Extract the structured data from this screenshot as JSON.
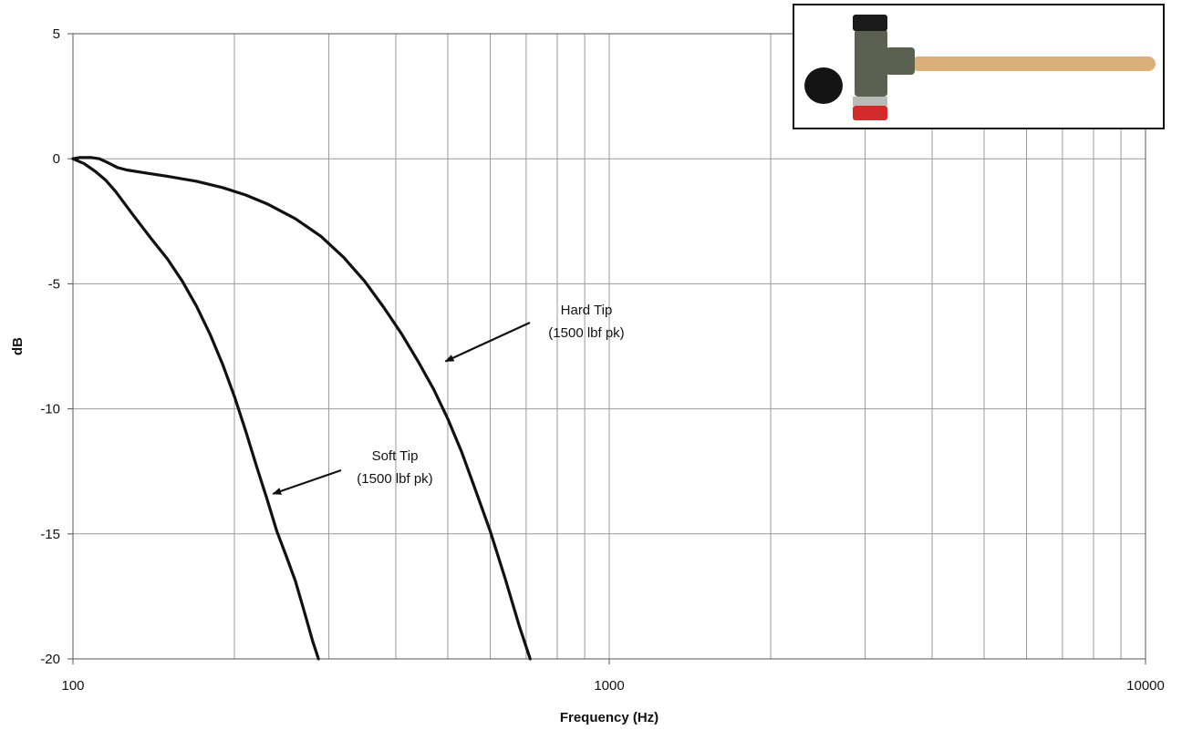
{
  "chart_data": {
    "type": "line",
    "title": "",
    "xlabel": "Frequency (Hz)",
    "ylabel": "dB",
    "xscale": "log",
    "xlim": [
      100,
      10000
    ],
    "ylim": [
      -20,
      5
    ],
    "x_ticks": [
      "100",
      "1000",
      "10000"
    ],
    "y_ticks": [
      "5",
      "0",
      "-5",
      "-10",
      "-15",
      "-20"
    ],
    "grid": true,
    "legend": "none",
    "series": [
      {
        "name": "Hard Tip",
        "color": "#111111",
        "x": [
          100,
          103,
          108,
          112,
          116,
          121,
          126,
          135,
          150,
          170,
          190,
          210,
          230,
          260,
          290,
          320,
          350,
          380,
          410,
          440,
          470,
          500,
          530,
          560,
          600,
          640,
          680,
          712
        ],
        "y": [
          0,
          0.05,
          0.05,
          0,
          -0.15,
          -0.35,
          -0.45,
          -0.55,
          -0.7,
          -0.9,
          -1.15,
          -1.45,
          -1.8,
          -2.4,
          -3.1,
          -3.95,
          -4.9,
          -5.95,
          -7.0,
          -8.1,
          -9.2,
          -10.4,
          -11.7,
          -13.1,
          -14.9,
          -16.8,
          -18.7,
          -20
        ]
      },
      {
        "name": "Soft Tip",
        "color": "#111111",
        "x": [
          100,
          105,
          110,
          115,
          120,
          130,
          140,
          150,
          160,
          170,
          180,
          190,
          200,
          210,
          220,
          230,
          240,
          250,
          260,
          270,
          280,
          287
        ],
        "y": [
          0,
          -0.2,
          -0.5,
          -0.85,
          -1.3,
          -2.3,
          -3.2,
          -4.0,
          -4.9,
          -5.9,
          -7.0,
          -8.2,
          -9.5,
          -10.9,
          -12.3,
          -13.6,
          -14.9,
          -15.9,
          -16.9,
          -18.1,
          -19.3,
          -20
        ]
      }
    ],
    "annotations": [
      {
        "line1": "Hard Tip",
        "line2": "(1500 lbf pk)",
        "target": {
          "x": 495,
          "y": -8.1
        }
      },
      {
        "line1": "Soft Tip",
        "line2": "(1500 lbf pk)",
        "target": {
          "x": 236,
          "y": -13.4
        }
      }
    ],
    "inset": {
      "subject": "hammer-photo",
      "tip_colors": {
        "head_top": "#1a1a1a",
        "head_bottom": "#d42a2a",
        "body": "#5a6150",
        "handle": "#dcae7a",
        "tip": "#141414"
      }
    }
  }
}
